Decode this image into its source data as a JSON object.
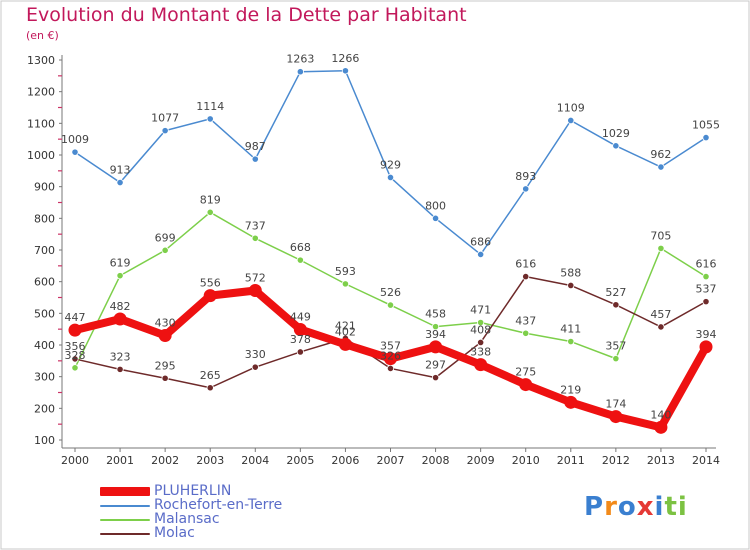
{
  "chart_data": {
    "type": "line",
    "title": "Evolution du Montant de la Dette par Habitant",
    "subtitle": "(en €)",
    "x": [
      "2000",
      "2001",
      "2002",
      "2003",
      "2004",
      "2005",
      "2006",
      "2007",
      "2008",
      "2009",
      "2010",
      "2011",
      "2012",
      "2013",
      "2014"
    ],
    "ylim": [
      100,
      1300
    ],
    "yticks": [
      100,
      200,
      300,
      400,
      500,
      600,
      700,
      800,
      900,
      1000,
      1100,
      1200,
      1300
    ],
    "grid": false,
    "legend_position": "bottom-left",
    "series": [
      {
        "name": "PLUHERLIN",
        "color": "#ee1111",
        "values": [
          447,
          482,
          430,
          556,
          572,
          449,
          402,
          357,
          394,
          338,
          275,
          219,
          174,
          140,
          394
        ],
        "labels": [
          "447",
          "482",
          "430",
          "556",
          "572",
          "449",
          "402",
          "357",
          "394",
          "338",
          "275",
          "219",
          "174",
          "140",
          "394"
        ]
      },
      {
        "name": "Rochefort-en-Terre",
        "color": "#4a8ad0",
        "values": [
          1009,
          913,
          1077,
          1114,
          987,
          1263,
          1266,
          929,
          800,
          686,
          893,
          1109,
          1029,
          962,
          1055
        ],
        "labels": [
          "1009",
          "913",
          "1077",
          "1114",
          "987",
          "1263",
          "1266",
          "929",
          "800",
          "686",
          "893",
          "1109",
          "1029",
          "962",
          "1055"
        ]
      },
      {
        "name": "Malansac",
        "color": "#7dcf4a",
        "values": [
          328,
          619,
          699,
          819,
          737,
          668,
          593,
          526,
          458,
          471,
          437,
          411,
          357,
          705,
          616
        ],
        "labels": [
          "328",
          "619",
          "699",
          "819",
          "737",
          "668",
          "593",
          "526",
          "458",
          "471",
          "437",
          "411",
          "357",
          "705",
          "616"
        ]
      },
      {
        "name": "Molac",
        "color": "#6e2a2a",
        "values": [
          356,
          323,
          295,
          265,
          330,
          378,
          421,
          326,
          297,
          408,
          616,
          588,
          527,
          457,
          537
        ],
        "labels": [
          "356",
          "323",
          "295",
          "265",
          "330",
          "378",
          "421",
          "326",
          "297",
          "408",
          "616",
          "588",
          "527",
          "457",
          "537"
        ]
      }
    ]
  },
  "logo": {
    "text": "Proxiti"
  }
}
